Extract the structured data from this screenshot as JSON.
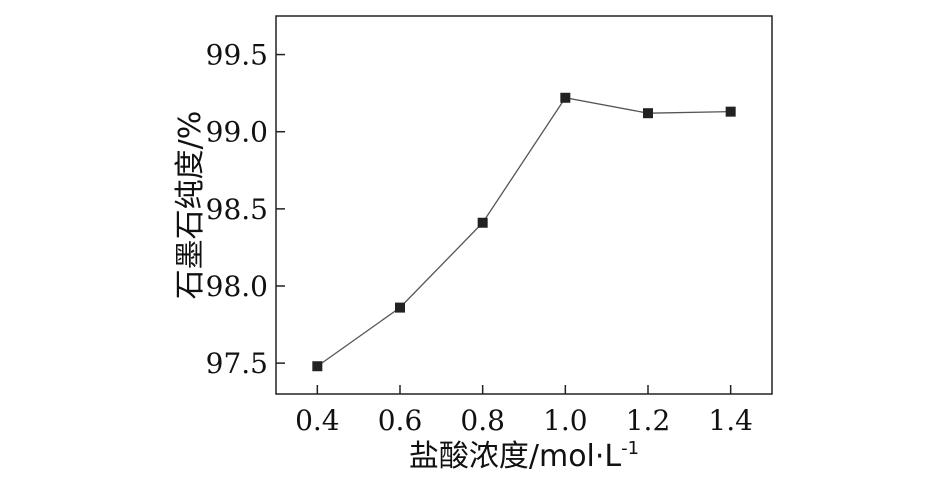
{
  "chart_data": {
    "type": "line",
    "title": "",
    "xlabel": "盐酸浓度/mol·L",
    "xlabel_sup": "-1",
    "ylabel": "石墨石纯度/%",
    "x": [
      0.4,
      0.6,
      0.8,
      1.0,
      1.2,
      1.4
    ],
    "x_tick_labels": [
      "0.4",
      "0.6",
      "0.8",
      "1.0",
      "1.2",
      "1.4"
    ],
    "y_ticks": [
      97.5,
      98.0,
      98.5,
      99.0,
      99.5
    ],
    "y_tick_labels": [
      "97.5",
      "98.0",
      "98.5",
      "99.0",
      "99.5"
    ],
    "xlim": [
      0.3,
      1.5
    ],
    "ylim": [
      97.3,
      99.75
    ],
    "grid": false,
    "series": [
      {
        "values": [
          97.48,
          97.86,
          98.41,
          99.22,
          99.12,
          99.13
        ],
        "color": "#222222",
        "marker": "square"
      }
    ]
  }
}
